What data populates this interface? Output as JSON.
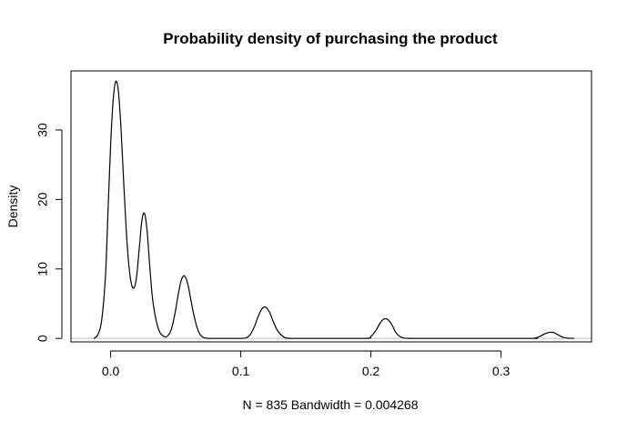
{
  "chart_data": {
    "type": "line",
    "title": "Probability density of purchasing the product",
    "xlabel": "N = 835   Bandwidth = 0.004268",
    "ylabel": "Density",
    "xlim": [
      -0.0305,
      0.3695
    ],
    "ylim": [
      -0.5,
      38.5
    ],
    "x_ticks": [
      0.0,
      0.1,
      0.2,
      0.3
    ],
    "x_tick_labels": [
      "0.0",
      "0.1",
      "0.2",
      "0.3"
    ],
    "y_ticks": [
      0,
      10,
      20,
      30
    ],
    "y_tick_labels": [
      "0",
      "10",
      "20",
      "30"
    ],
    "grid": false,
    "baseline": 0,
    "series": [
      {
        "x": [
          -0.013,
          -0.01,
          -0.007,
          -0.004,
          -0.002,
          0.0,
          0.002,
          0.004,
          0.006,
          0.008,
          0.01,
          0.012,
          0.014,
          0.016,
          0.018,
          0.02,
          0.022,
          0.024,
          0.026,
          0.028,
          0.03,
          0.032,
          0.034,
          0.036,
          0.038,
          0.04,
          0.042,
          0.044,
          0.046,
          0.048,
          0.05,
          0.052,
          0.054,
          0.056,
          0.058,
          0.06,
          0.062,
          0.064,
          0.066,
          0.068,
          0.07,
          0.072,
          0.075,
          0.078,
          0.1,
          0.106,
          0.11,
          0.113,
          0.116,
          0.119,
          0.122,
          0.125,
          0.128,
          0.131,
          0.134,
          0.138,
          0.143,
          0.15,
          0.195,
          0.2,
          0.204,
          0.207,
          0.21,
          0.213,
          0.216,
          0.219,
          0.222,
          0.226,
          0.232,
          0.24,
          0.32,
          0.326,
          0.33,
          0.334,
          0.338,
          0.341,
          0.344,
          0.347,
          0.351,
          0.356
        ],
        "y": [
          0.0,
          0.5,
          2.5,
          9.0,
          18.5,
          28.0,
          34.5,
          37.0,
          35.5,
          30.0,
          22.5,
          15.5,
          10.5,
          7.8,
          7.3,
          9.0,
          13.0,
          17.0,
          18.0,
          15.5,
          10.5,
          6.0,
          3.5,
          1.8,
          0.8,
          0.4,
          0.2,
          0.4,
          1.0,
          2.3,
          4.2,
          6.4,
          8.2,
          9.0,
          8.6,
          7.2,
          5.2,
          3.3,
          1.8,
          0.8,
          0.3,
          0.1,
          0.0,
          0.0,
          0.0,
          0.3,
          1.5,
          3.0,
          4.2,
          4.5,
          3.8,
          2.4,
          1.2,
          0.5,
          0.1,
          0.0,
          0.0,
          0.0,
          0.0,
          0.3,
          1.2,
          2.2,
          2.8,
          2.7,
          2.0,
          0.9,
          0.3,
          0.05,
          0.0,
          0.0,
          0.0,
          0.05,
          0.3,
          0.7,
          0.9,
          0.8,
          0.5,
          0.2,
          0.05,
          0.0
        ]
      }
    ]
  }
}
